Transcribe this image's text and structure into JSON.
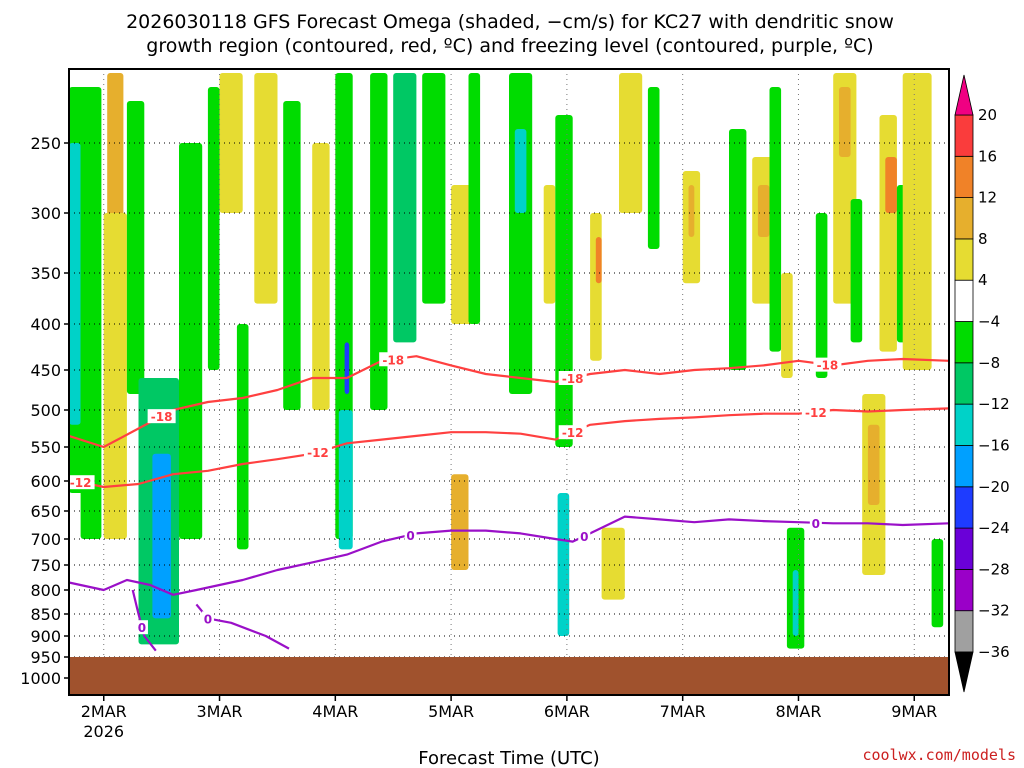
{
  "chart_data": {
    "type": "heatmap",
    "title_line1": "2026030118 GFS Forecast Omega (shaded, −cm/s) for KC27 with dendritic snow",
    "title_line2": "growth region (contoured, red, ºC) and freezing level (contoured, purple, ºC)",
    "xlabel": "Forecast Time (UTC)",
    "credit": "coolwx.com/models",
    "x_range_days": [
      0,
      7.6
    ],
    "x_ticks": [
      {
        "day": 0.3,
        "label": "2MAR",
        "sub": "2026"
      },
      {
        "day": 1.3,
        "label": "3MAR",
        "sub": ""
      },
      {
        "day": 2.3,
        "label": "4MAR",
        "sub": ""
      },
      {
        "day": 3.3,
        "label": "5MAR",
        "sub": ""
      },
      {
        "day": 4.3,
        "label": "6MAR",
        "sub": ""
      },
      {
        "day": 5.3,
        "label": "7MAR",
        "sub": ""
      },
      {
        "day": 6.3,
        "label": "8MAR",
        "sub": ""
      },
      {
        "day": 7.3,
        "label": "9MAR",
        "sub": ""
      }
    ],
    "y_range_hpa": [
      1000,
      200
    ],
    "y_ticks": [
      {
        "p": 250,
        "label": "250"
      },
      {
        "p": 300,
        "label": "300"
      },
      {
        "p": 350,
        "label": "350"
      },
      {
        "p": 400,
        "label": "400"
      },
      {
        "p": 450,
        "label": "450"
      },
      {
        "p": 500,
        "label": "500"
      },
      {
        "p": 550,
        "label": "550"
      },
      {
        "p": 600,
        "label": "600"
      },
      {
        "p": 650,
        "label": "650"
      },
      {
        "p": 700,
        "label": "700"
      },
      {
        "p": 750,
        "label": "750"
      },
      {
        "p": 800,
        "label": "800"
      },
      {
        "p": 850,
        "label": "850"
      },
      {
        "p": 900,
        "label": "900"
      },
      {
        "p": 950,
        "label": "950"
      },
      {
        "p": 1000,
        "label": "1000"
      }
    ],
    "ground_pressure_hpa": 950,
    "ground_color": "#a0522d",
    "colorbar": {
      "bounds": [
        -36,
        -32,
        -28,
        -24,
        -20,
        -16,
        -12,
        -8,
        -4,
        4,
        8,
        12,
        16,
        20
      ],
      "labels": [
        "20",
        "16",
        "12",
        "8",
        "4",
        "−4",
        "−8",
        "−12",
        "−16",
        "−20",
        "−24",
        "−28",
        "−32",
        "−36"
      ],
      "colors": [
        {
          "min": -40,
          "max": -36,
          "color": "#000000"
        },
        {
          "min": -36,
          "max": -32,
          "color": "#a0a0a0"
        },
        {
          "min": -32,
          "max": -28,
          "color": "#9a00c8"
        },
        {
          "min": -28,
          "max": -24,
          "color": "#6a00d8"
        },
        {
          "min": -24,
          "max": -20,
          "color": "#1e3cff"
        },
        {
          "min": -20,
          "max": -16,
          "color": "#00a0ff"
        },
        {
          "min": -16,
          "max": -12,
          "color": "#00d2c8"
        },
        {
          "min": -12,
          "max": -8,
          "color": "#00c864"
        },
        {
          "min": -8,
          "max": -4,
          "color": "#00dc00"
        },
        {
          "min": -4,
          "max": 4,
          "color": "#ffffff"
        },
        {
          "min": 4,
          "max": 8,
          "color": "#e6dc32"
        },
        {
          "min": 8,
          "max": 12,
          "color": "#e6af2d"
        },
        {
          "min": 12,
          "max": 16,
          "color": "#f08228"
        },
        {
          "min": 16,
          "max": 20,
          "color": "#fa3c3c"
        },
        {
          "min": 20,
          "max": 24,
          "color": "#f00082"
        }
      ]
    },
    "omega_cells": [
      {
        "d": [
          0.0,
          0.15
        ],
        "p": [
          210,
          620
        ],
        "v": -8
      },
      {
        "d": [
          0.0,
          0.1
        ],
        "p": [
          250,
          520
        ],
        "v": -13
      },
      {
        "d": [
          0.1,
          0.28
        ],
        "p": [
          210,
          700
        ],
        "v": -6
      },
      {
        "d": [
          0.35,
          0.45
        ],
        "p": [
          200,
          320
        ],
        "v": 17
      },
      {
        "d": [
          0.33,
          0.47
        ],
        "p": [
          200,
          500
        ],
        "v": 9
      },
      {
        "d": [
          0.3,
          0.5
        ],
        "p": [
          300,
          700
        ],
        "v": 5
      },
      {
        "d": [
          0.5,
          0.65
        ],
        "p": [
          220,
          480
        ],
        "v": -7
      },
      {
        "d": [
          0.6,
          0.95
        ],
        "p": [
          460,
          920
        ],
        "v": -9
      },
      {
        "d": [
          0.72,
          0.88
        ],
        "p": [
          560,
          860
        ],
        "v": -17
      },
      {
        "d": [
          0.95,
          1.15
        ],
        "p": [
          250,
          700
        ],
        "v": -7
      },
      {
        "d": [
          1.2,
          1.3
        ],
        "p": [
          210,
          450
        ],
        "v": -6
      },
      {
        "d": [
          1.3,
          1.5
        ],
        "p": [
          200,
          300
        ],
        "v": 5
      },
      {
        "d": [
          1.45,
          1.55
        ],
        "p": [
          400,
          720
        ],
        "v": -6
      },
      {
        "d": [
          1.6,
          1.8
        ],
        "p": [
          200,
          380
        ],
        "v": 5
      },
      {
        "d": [
          1.85,
          2.0
        ],
        "p": [
          220,
          500
        ],
        "v": -7
      },
      {
        "d": [
          2.1,
          2.25
        ],
        "p": [
          250,
          500
        ],
        "v": 5
      },
      {
        "d": [
          2.3,
          2.45
        ],
        "p": [
          200,
          700
        ],
        "v": -8
      },
      {
        "d": [
          2.38,
          2.42
        ],
        "p": [
          420,
          480
        ],
        "v": -22
      },
      {
        "d": [
          2.33,
          2.45
        ],
        "p": [
          500,
          720
        ],
        "v": -13
      },
      {
        "d": [
          2.6,
          2.75
        ],
        "p": [
          200,
          500
        ],
        "v": -7
      },
      {
        "d": [
          2.8,
          3.0
        ],
        "p": [
          200,
          420
        ],
        "v": -9
      },
      {
        "d": [
          3.05,
          3.25
        ],
        "p": [
          200,
          380
        ],
        "v": -7
      },
      {
        "d": [
          3.3,
          3.5
        ],
        "p": [
          280,
          400
        ],
        "v": 5
      },
      {
        "d": [
          3.3,
          3.45
        ],
        "p": [
          590,
          760
        ],
        "v": 9
      },
      {
        "d": [
          3.45,
          3.55
        ],
        "p": [
          200,
          400
        ],
        "v": -6
      },
      {
        "d": [
          3.8,
          4.0
        ],
        "p": [
          200,
          480
        ],
        "v": -7
      },
      {
        "d": [
          3.85,
          3.95
        ],
        "p": [
          240,
          300
        ],
        "v": -13
      },
      {
        "d": [
          4.1,
          4.2
        ],
        "p": [
          280,
          380
        ],
        "v": 5
      },
      {
        "d": [
          4.2,
          4.35
        ],
        "p": [
          230,
          550
        ],
        "v": -7
      },
      {
        "d": [
          4.5,
          4.6
        ],
        "p": [
          300,
          440
        ],
        "v": 5
      },
      {
        "d": [
          4.55,
          4.6
        ],
        "p": [
          320,
          360
        ],
        "v": 13
      },
      {
        "d": [
          4.6,
          4.8
        ],
        "p": [
          680,
          820
        ],
        "v": 5
      },
      {
        "d": [
          4.22,
          4.32
        ],
        "p": [
          620,
          900
        ],
        "v": -13
      },
      {
        "d": [
          4.75,
          4.95
        ],
        "p": [
          200,
          300
        ],
        "v": 5
      },
      {
        "d": [
          5.3,
          5.45
        ],
        "p": [
          270,
          360
        ],
        "v": 5
      },
      {
        "d": [
          5.35,
          5.4
        ],
        "p": [
          280,
          320
        ],
        "v": 9
      },
      {
        "d": [
          5.0,
          5.1
        ],
        "p": [
          210,
          330
        ],
        "v": -7
      },
      {
        "d": [
          5.7,
          5.85
        ],
        "p": [
          240,
          450
        ],
        "v": -7
      },
      {
        "d": [
          5.9,
          6.1
        ],
        "p": [
          260,
          380
        ],
        "v": 5
      },
      {
        "d": [
          5.95,
          6.05
        ],
        "p": [
          280,
          320
        ],
        "v": 9
      },
      {
        "d": [
          6.05,
          6.15
        ],
        "p": [
          210,
          430
        ],
        "v": -7
      },
      {
        "d": [
          6.2,
          6.35
        ],
        "p": [
          680,
          930
        ],
        "v": -6
      },
      {
        "d": [
          6.25,
          6.3
        ],
        "p": [
          760,
          900
        ],
        "v": -13
      },
      {
        "d": [
          6.15,
          6.25
        ],
        "p": [
          350,
          460
        ],
        "v": 5
      },
      {
        "d": [
          6.45,
          6.55
        ],
        "p": [
          300,
          460
        ],
        "v": -6
      },
      {
        "d": [
          6.6,
          6.8
        ],
        "p": [
          200,
          380
        ],
        "v": 5
      },
      {
        "d": [
          6.65,
          6.75
        ],
        "p": [
          210,
          260
        ],
        "v": 9
      },
      {
        "d": [
          6.75,
          6.85
        ],
        "p": [
          290,
          420
        ],
        "v": -8
      },
      {
        "d": [
          6.85,
          7.05
        ],
        "p": [
          480,
          770
        ],
        "v": 6
      },
      {
        "d": [
          6.9,
          7.0
        ],
        "p": [
          520,
          640
        ],
        "v": 10
      },
      {
        "d": [
          7.0,
          7.15
        ],
        "p": [
          230,
          430
        ],
        "v": 5
      },
      {
        "d": [
          7.05,
          7.15
        ],
        "p": [
          260,
          300
        ],
        "v": 15
      },
      {
        "d": [
          7.15,
          7.25
        ],
        "p": [
          280,
          420
        ],
        "v": -7
      },
      {
        "d": [
          7.2,
          7.45
        ],
        "p": [
          200,
          450
        ],
        "v": 5
      },
      {
        "d": [
          7.45,
          7.55
        ],
        "p": [
          700,
          880
        ],
        "v": -6
      }
    ],
    "contours": [
      {
        "name": "-18 C",
        "color": "#ff4040",
        "label": "-18",
        "points": [
          [
            0.0,
            535
          ],
          [
            0.3,
            550
          ],
          [
            0.6,
            525
          ],
          [
            0.9,
            500
          ],
          [
            1.2,
            490
          ],
          [
            1.5,
            485
          ],
          [
            1.8,
            475
          ],
          [
            2.1,
            460
          ],
          [
            2.4,
            460
          ],
          [
            2.7,
            440
          ],
          [
            3.0,
            435
          ],
          [
            3.3,
            445
          ],
          [
            3.6,
            455
          ],
          [
            3.9,
            460
          ],
          [
            4.2,
            465
          ],
          [
            4.35,
            460
          ],
          [
            4.5,
            455
          ],
          [
            4.8,
            450
          ],
          [
            5.1,
            455
          ],
          [
            5.4,
            450
          ],
          [
            5.7,
            448
          ],
          [
            6.0,
            445
          ],
          [
            6.3,
            440
          ],
          [
            6.6,
            445
          ],
          [
            6.9,
            440
          ],
          [
            7.2,
            438
          ],
          [
            7.6,
            440
          ]
        ],
        "label_days": [
          0.8,
          2.8,
          4.35,
          6.55
        ]
      },
      {
        "name": "-12 C",
        "color": "#ff4040",
        "label": "-12",
        "points": [
          [
            0.0,
            598
          ],
          [
            0.3,
            610
          ],
          [
            0.6,
            605
          ],
          [
            0.9,
            590
          ],
          [
            1.2,
            585
          ],
          [
            1.5,
            575
          ],
          [
            1.8,
            568
          ],
          [
            2.1,
            560
          ],
          [
            2.4,
            545
          ],
          [
            2.7,
            540
          ],
          [
            3.0,
            535
          ],
          [
            3.3,
            530
          ],
          [
            3.6,
            530
          ],
          [
            3.9,
            532
          ],
          [
            4.2,
            540
          ],
          [
            4.35,
            530
          ],
          [
            4.5,
            520
          ],
          [
            4.8,
            515
          ],
          [
            5.1,
            512
          ],
          [
            5.4,
            510
          ],
          [
            5.7,
            507
          ],
          [
            6.0,
            505
          ],
          [
            6.3,
            505
          ],
          [
            6.6,
            500
          ],
          [
            6.9,
            502
          ],
          [
            7.2,
            500
          ],
          [
            7.6,
            498
          ]
        ],
        "label_days": [
          0.1,
          2.15,
          4.35,
          6.45
        ]
      },
      {
        "name": "0 C",
        "color": "#9a10c8",
        "label": "0",
        "points": [
          [
            0.0,
            785
          ],
          [
            0.3,
            800
          ],
          [
            0.5,
            780
          ],
          [
            0.7,
            790
          ],
          [
            0.9,
            810
          ],
          [
            1.1,
            800
          ],
          [
            1.3,
            790
          ],
          [
            1.5,
            780
          ],
          [
            1.8,
            760
          ],
          [
            2.1,
            745
          ],
          [
            2.4,
            730
          ],
          [
            2.7,
            705
          ],
          [
            3.0,
            690
          ],
          [
            3.3,
            685
          ],
          [
            3.6,
            685
          ],
          [
            3.9,
            690
          ],
          [
            4.2,
            700
          ],
          [
            4.35,
            705
          ],
          [
            4.5,
            690
          ],
          [
            4.8,
            660
          ],
          [
            5.1,
            665
          ],
          [
            5.4,
            670
          ],
          [
            5.7,
            665
          ],
          [
            6.0,
            668
          ],
          [
            6.3,
            670
          ],
          [
            6.6,
            672
          ],
          [
            6.9,
            672
          ],
          [
            7.2,
            675
          ],
          [
            7.6,
            672
          ]
        ],
        "label_days": [
          2.95,
          4.45,
          6.45
        ]
      },
      {
        "name": "0 C lower",
        "color": "#9a10c8",
        "label": "0",
        "points": [
          [
            0.55,
            800
          ],
          [
            0.6,
            850
          ],
          [
            0.65,
            900
          ],
          [
            0.75,
            935
          ]
        ],
        "label_days": [
          0.63
        ]
      },
      {
        "name": "0 C lower 2",
        "color": "#9a10c8",
        "label": "0",
        "points": [
          [
            1.1,
            830
          ],
          [
            1.2,
            860
          ],
          [
            1.4,
            870
          ],
          [
            1.7,
            900
          ],
          [
            1.9,
            930
          ]
        ],
        "label_days": [
          1.2
        ]
      }
    ]
  }
}
